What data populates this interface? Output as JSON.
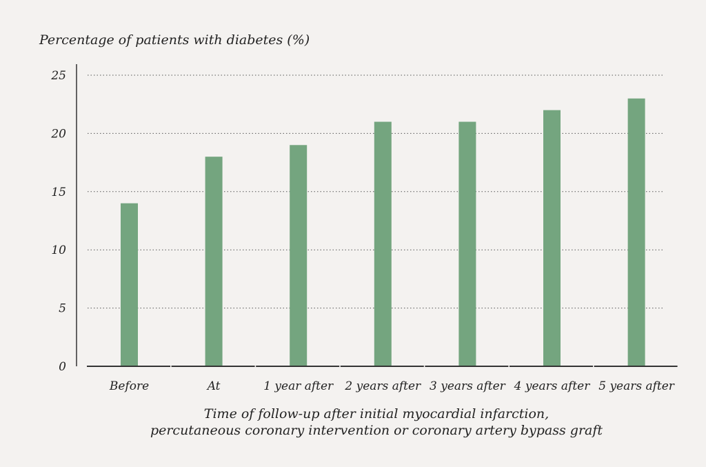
{
  "chart_data": {
    "type": "bar",
    "ylabel": "Percentage of patients with diabetes (%)",
    "xlabel_lines": [
      "Time of follow-up after initial myocardial infarction,",
      "percutaneous coronary intervention or coronary artery bypass graft"
    ],
    "categories": [
      "Before",
      "At",
      "1 year after",
      "2 years after",
      "3 years after",
      "4 years after",
      "5 years after"
    ],
    "values": [
      14,
      18,
      19,
      21,
      21,
      22,
      23
    ],
    "ylim": [
      0,
      25
    ],
    "yticks": [
      0,
      5,
      10,
      15,
      20,
      25
    ],
    "grid": true,
    "bar_color": "#74a57f",
    "axis_color": "#333333"
  }
}
